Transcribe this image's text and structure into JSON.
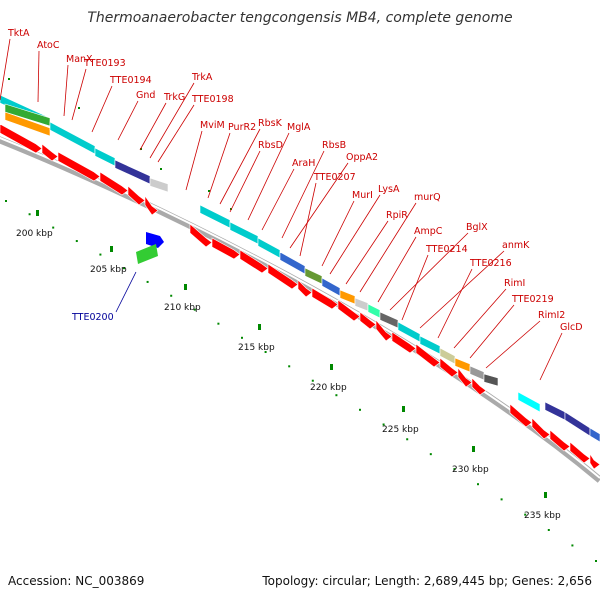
{
  "title": "Thermoanaerobacter tengcongensis MB4, complete genome",
  "footer": {
    "accession": "Accession: NC_003869",
    "topology": "Topology: circular; Length: 2,689,445 bp; Genes: 2,656"
  },
  "ruler": [
    {
      "label": "200 kbp",
      "kb": 200
    },
    {
      "label": "205 kbp",
      "kb": 205
    },
    {
      "label": "210 kbp",
      "kb": 210
    },
    {
      "label": "215 kbp",
      "kb": 215
    },
    {
      "label": "220 kbp",
      "kb": 220
    },
    {
      "label": "225 kbp",
      "kb": 225
    },
    {
      "label": "230 kbp",
      "kb": 230
    },
    {
      "label": "235 kbp",
      "kb": 235
    }
  ],
  "gene_labels": [
    "TktA",
    "AtoC",
    "ManX",
    "TTE0193",
    "TTE0194",
    "Gnd",
    "TrkG",
    "TrkA",
    "TTE0198",
    "MviM",
    "PurR2",
    "RbsK",
    "RbsD",
    "MglA",
    "AraH",
    "RbsB",
    "OppA2",
    "TTE0207",
    "MurI",
    "LysA",
    "RpiR",
    "murQ",
    "AmpC",
    "BglX",
    "TTE0214",
    "anmK",
    "TTE0216",
    "RimI",
    "TTE0219",
    "RimI2",
    "GlcD"
  ],
  "inner_gene_label": "TTE0200",
  "colors": {
    "cds_red": "#ff0000",
    "inner_blue": "#0000ff",
    "inner_green": "#33cc33",
    "label_red": "#cc0000",
    "label_blue": "#000099",
    "tick_green": "#008800",
    "backbone": "#888888"
  }
}
